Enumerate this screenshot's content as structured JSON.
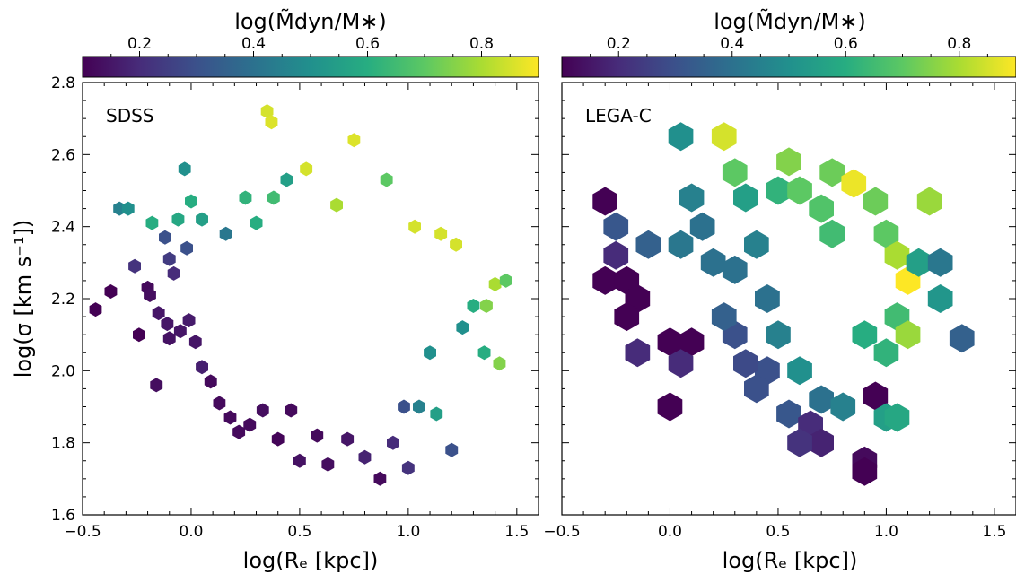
{
  "chart_data": [
    {
      "type": "hexbin",
      "panel": "SDSS",
      "xlabel": "log(Rₑ [kpc])",
      "ylabel": "log(σ [km s⁻¹])",
      "xlim": [
        -0.5,
        1.6
      ],
      "ylim": [
        1.6,
        2.8
      ],
      "xticks": [
        "−0.5",
        "0.0",
        "0.5",
        "1.0",
        "1.5"
      ],
      "yticks": [
        "1.6",
        "1.8",
        "2.0",
        "2.2",
        "2.4",
        "2.6",
        "2.8"
      ],
      "colorbar": {
        "label": "log(M̃dyn/M∗)",
        "range": [
          0.1,
          0.9
        ],
        "ticks": [
          "0.2",
          "0.4",
          "0.6",
          "0.8"
        ],
        "colormap": "viridis"
      },
      "hexagons": [
        [
          -0.44,
          2.17,
          0.1
        ],
        [
          -0.37,
          2.22,
          0.1
        ],
        [
          -0.33,
          2.45,
          0.45
        ],
        [
          -0.29,
          2.45,
          0.5
        ],
        [
          -0.26,
          2.29,
          0.22
        ],
        [
          -0.24,
          2.1,
          0.1
        ],
        [
          -0.2,
          2.23,
          0.12
        ],
        [
          -0.19,
          2.21,
          0.13
        ],
        [
          -0.18,
          2.41,
          0.6
        ],
        [
          -0.16,
          1.96,
          0.13
        ],
        [
          -0.15,
          2.16,
          0.15
        ],
        [
          -0.12,
          2.37,
          0.3
        ],
        [
          -0.11,
          2.13,
          0.15
        ],
        [
          -0.1,
          2.31,
          0.24
        ],
        [
          -0.1,
          2.09,
          0.14
        ],
        [
          -0.08,
          2.27,
          0.2
        ],
        [
          -0.06,
          2.42,
          0.58
        ],
        [
          -0.05,
          2.11,
          0.15
        ],
        [
          -0.03,
          2.56,
          0.5
        ],
        [
          -0.02,
          2.34,
          0.3
        ],
        [
          -0.01,
          2.14,
          0.16
        ],
        [
          0.0,
          2.47,
          0.6
        ],
        [
          0.02,
          2.08,
          0.15
        ],
        [
          0.05,
          2.01,
          0.17
        ],
        [
          0.05,
          2.42,
          0.55
        ],
        [
          0.09,
          1.97,
          0.12
        ],
        [
          0.13,
          1.91,
          0.12
        ],
        [
          0.16,
          2.38,
          0.42
        ],
        [
          0.18,
          1.87,
          0.12
        ],
        [
          0.22,
          1.83,
          0.12
        ],
        [
          0.25,
          2.48,
          0.62
        ],
        [
          0.27,
          1.85,
          0.12
        ],
        [
          0.3,
          2.41,
          0.6
        ],
        [
          0.33,
          1.89,
          0.13
        ],
        [
          0.35,
          2.72,
          0.85
        ],
        [
          0.37,
          2.69,
          0.86
        ],
        [
          0.38,
          2.48,
          0.65
        ],
        [
          0.4,
          1.81,
          0.11
        ],
        [
          0.44,
          2.53,
          0.55
        ],
        [
          0.46,
          1.89,
          0.12
        ],
        [
          0.5,
          1.75,
          0.14
        ],
        [
          0.53,
          2.56,
          0.85
        ],
        [
          0.58,
          1.82,
          0.12
        ],
        [
          0.63,
          1.74,
          0.13
        ],
        [
          0.67,
          2.46,
          0.8
        ],
        [
          0.72,
          1.81,
          0.15
        ],
        [
          0.75,
          2.64,
          0.86
        ],
        [
          0.8,
          1.76,
          0.18
        ],
        [
          0.87,
          1.7,
          0.12
        ],
        [
          0.9,
          2.53,
          0.7
        ],
        [
          0.93,
          1.8,
          0.2
        ],
        [
          0.98,
          1.9,
          0.3
        ],
        [
          1.0,
          1.73,
          0.22
        ],
        [
          1.03,
          2.4,
          0.85
        ],
        [
          1.05,
          1.9,
          0.45
        ],
        [
          1.1,
          2.05,
          0.5
        ],
        [
          1.13,
          1.88,
          0.55
        ],
        [
          1.15,
          2.38,
          0.85
        ],
        [
          1.2,
          1.78,
          0.3
        ],
        [
          1.25,
          2.12,
          0.5
        ],
        [
          1.3,
          2.18,
          0.6
        ],
        [
          1.35,
          2.05,
          0.6
        ],
        [
          1.4,
          2.24,
          0.8
        ],
        [
          1.42,
          2.02,
          0.75
        ],
        [
          1.45,
          2.25,
          0.7
        ],
        [
          1.36,
          2.18,
          0.75
        ],
        [
          1.22,
          2.35,
          0.85
        ]
      ]
    },
    {
      "type": "hexbin",
      "panel": "LEGA-C",
      "xlabel": "log(Rₑ [kpc])",
      "xlim": [
        -0.5,
        1.6
      ],
      "ylim": [
        1.6,
        2.8
      ],
      "xticks": [
        "−0.5",
        "0.0",
        "0.5",
        "1.0",
        "1.5"
      ],
      "colorbar": {
        "label": "log(M̃dyn/M∗)",
        "range": [
          0.1,
          0.9
        ],
        "ticks": [
          "0.2",
          "0.4",
          "0.6",
          "0.8"
        ],
        "colormap": "viridis"
      },
      "hexagons": [
        [
          -0.3,
          2.47,
          0.1
        ],
        [
          -0.25,
          2.4,
          0.32
        ],
        [
          -0.3,
          2.25,
          0.1
        ],
        [
          -0.2,
          2.25,
          0.1
        ],
        [
          -0.15,
          2.2,
          0.1
        ],
        [
          -0.2,
          2.15,
          0.1
        ],
        [
          -0.25,
          2.32,
          0.2
        ],
        [
          -0.1,
          2.35,
          0.35
        ],
        [
          0.0,
          2.08,
          0.1
        ],
        [
          0.1,
          2.08,
          0.1
        ],
        [
          0.05,
          2.02,
          0.2
        ],
        [
          0.0,
          1.9,
          0.1
        ],
        [
          -0.15,
          2.05,
          0.2
        ],
        [
          0.05,
          2.35,
          0.42
        ],
        [
          0.1,
          2.48,
          0.45
        ],
        [
          0.15,
          2.4,
          0.4
        ],
        [
          0.05,
          2.65,
          0.5
        ],
        [
          0.25,
          2.65,
          0.85
        ],
        [
          0.3,
          2.55,
          0.7
        ],
        [
          0.35,
          2.48,
          0.55
        ],
        [
          0.4,
          2.35,
          0.45
        ],
        [
          0.3,
          2.28,
          0.4
        ],
        [
          0.2,
          2.3,
          0.4
        ],
        [
          0.45,
          2.2,
          0.4
        ],
        [
          0.5,
          2.5,
          0.62
        ],
        [
          0.6,
          2.5,
          0.7
        ],
        [
          0.7,
          2.45,
          0.68
        ],
        [
          0.75,
          2.38,
          0.65
        ],
        [
          0.55,
          2.58,
          0.75
        ],
        [
          0.75,
          2.55,
          0.72
        ],
        [
          0.85,
          2.52,
          0.88
        ],
        [
          0.95,
          2.47,
          0.72
        ],
        [
          1.0,
          2.38,
          0.7
        ],
        [
          1.05,
          2.32,
          0.8
        ],
        [
          1.1,
          2.25,
          0.9
        ],
        [
          1.15,
          2.3,
          0.55
        ],
        [
          1.2,
          2.47,
          0.78
        ],
        [
          1.25,
          2.3,
          0.42
        ],
        [
          1.25,
          2.2,
          0.52
        ],
        [
          0.9,
          2.1,
          0.6
        ],
        [
          1.0,
          2.05,
          0.62
        ],
        [
          1.05,
          2.15,
          0.65
        ],
        [
          1.1,
          2.1,
          0.78
        ],
        [
          0.5,
          2.1,
          0.45
        ],
        [
          0.6,
          2.0,
          0.5
        ],
        [
          0.45,
          2.0,
          0.3
        ],
        [
          0.4,
          1.95,
          0.3
        ],
        [
          0.55,
          1.88,
          0.32
        ],
        [
          0.7,
          1.92,
          0.4
        ],
        [
          0.8,
          1.9,
          0.45
        ],
        [
          0.95,
          1.93,
          0.1
        ],
        [
          1.0,
          1.87,
          0.55
        ],
        [
          1.05,
          1.87,
          0.58
        ],
        [
          0.65,
          1.85,
          0.2
        ],
        [
          0.7,
          1.8,
          0.18
        ],
        [
          0.6,
          1.8,
          0.22
        ],
        [
          0.9,
          1.75,
          0.12
        ],
        [
          0.9,
          1.72,
          0.1
        ],
        [
          1.35,
          2.09,
          0.35
        ],
        [
          0.3,
          2.1,
          0.3
        ],
        [
          0.35,
          2.02,
          0.28
        ],
        [
          0.25,
          2.15,
          0.35
        ]
      ]
    }
  ]
}
